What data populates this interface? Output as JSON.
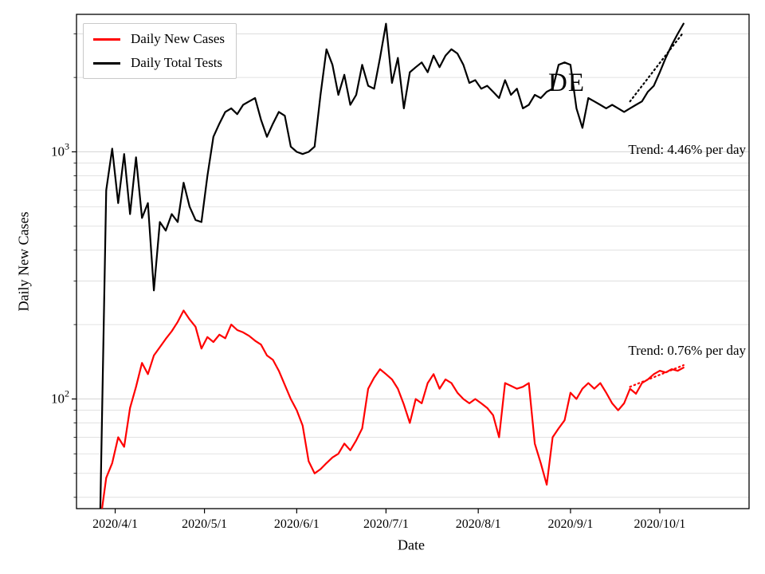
{
  "figure": {
    "watermark": "DE",
    "xlabel": "Date",
    "ylabel": "Daily New Cases",
    "legend": [
      {
        "label": "Daily New Cases",
        "color": "#ff0000"
      },
      {
        "label": "Daily Total Tests",
        "color": "#000000"
      }
    ],
    "annotations": [
      {
        "text": "Trend: 4.46% per day",
        "series": "Daily Total Tests"
      },
      {
        "text": "Trend: 0.76% per day",
        "series": "Daily New Cases"
      }
    ]
  },
  "chart_data": {
    "type": "line",
    "title": "",
    "xlabel": "Date",
    "ylabel": "Daily New Cases",
    "yscale": "log",
    "ylim": [
      36,
      3600
    ],
    "grid": true,
    "legend_position": "upper left",
    "x_range_days": [
      -8,
      218
    ],
    "start_date": "2020-03-27",
    "day_step": 2,
    "x_ticks_days": [
      5,
      35,
      66,
      96,
      127,
      158,
      188
    ],
    "x_tick_labels": [
      "2020/4/1",
      "2020/5/1",
      "2020/6/1",
      "2020/7/1",
      "2020/8/1",
      "2020/9/1",
      "2020/10/1"
    ],
    "y_tick_exponents": [
      2,
      3
    ],
    "series": [
      {
        "name": "Daily New Cases",
        "color": "#ff0000",
        "values": [
          32,
          48,
          55,
          70,
          64,
          92,
          112,
          140,
          126,
          150,
          162,
          175,
          188,
          205,
          228,
          210,
          196,
          160,
          178,
          170,
          182,
          176,
          200,
          190,
          186,
          180,
          172,
          166,
          150,
          144,
          130,
          114,
          100,
          90,
          78,
          56,
          50,
          52,
          55,
          58,
          60,
          66,
          62,
          68,
          76,
          110,
          122,
          132,
          126,
          120,
          110,
          95,
          80,
          100,
          96,
          116,
          126,
          110,
          120,
          116,
          106,
          100,
          96,
          100,
          96,
          92,
          86,
          70,
          116,
          113,
          110,
          112,
          116,
          66,
          55,
          45,
          70,
          76,
          82,
          106,
          100,
          110,
          116,
          110,
          116,
          106,
          96,
          90,
          96,
          110,
          105,
          116,
          120,
          126,
          130,
          128,
          132,
          130,
          134
        ]
      },
      {
        "name": "Daily Total Tests",
        "color": "#000000",
        "values": [
          36,
          700,
          1030,
          620,
          980,
          560,
          950,
          540,
          620,
          275,
          520,
          480,
          560,
          520,
          750,
          600,
          530,
          520,
          800,
          1150,
          1300,
          1450,
          1500,
          1420,
          1550,
          1600,
          1650,
          1350,
          1150,
          1300,
          1450,
          1400,
          1050,
          1000,
          980,
          1000,
          1050,
          1700,
          2600,
          2250,
          1700,
          2050,
          1550,
          1700,
          2250,
          1850,
          1800,
          2400,
          3300,
          1900,
          2400,
          1500,
          2100,
          2200,
          2300,
          2100,
          2450,
          2200,
          2450,
          2600,
          2500,
          2250,
          1900,
          1950,
          1800,
          1850,
          1750,
          1650,
          1950,
          1700,
          1800,
          1500,
          1550,
          1700,
          1650,
          1750,
          1800,
          2250,
          2300,
          2250,
          1500,
          1250,
          1650,
          1600,
          1550,
          1500,
          1550,
          1500,
          1450,
          1500,
          1550,
          1600,
          1750,
          1850,
          2100,
          2400,
          2700,
          3000,
          3300
        ]
      }
    ],
    "trends": [
      {
        "series": "Daily Total Tests",
        "rate_percent_per_day": 4.46,
        "text": "Trend: 4.46% per day",
        "start_day": 178,
        "end_day": 196,
        "start_value": 1600,
        "end_value": 3050,
        "style": "dotted",
        "color": "#000000"
      },
      {
        "series": "Daily New Cases",
        "rate_percent_per_day": 0.76,
        "text": "Trend: 0.76% per day",
        "start_day": 178,
        "end_day": 196,
        "start_value": 112,
        "end_value": 137,
        "style": "dotted",
        "color": "#ff0000"
      }
    ]
  }
}
